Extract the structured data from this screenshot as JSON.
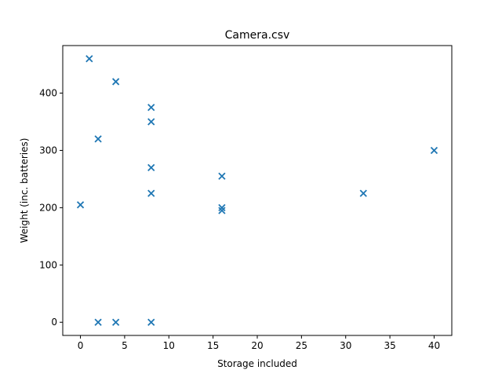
{
  "chart_data": {
    "type": "scatter",
    "title": "Camera.csv",
    "xlabel": "Storage included",
    "ylabel": "Weight (inc. batteries)",
    "xlim": [
      -2,
      42
    ],
    "ylim": [
      -23,
      483
    ],
    "xticks": [
      0,
      5,
      10,
      15,
      20,
      25,
      30,
      35,
      40
    ],
    "yticks": [
      0,
      100,
      200,
      300,
      400
    ],
    "grid": false,
    "marker": "x",
    "marker_color": "#1f77b4",
    "points": [
      {
        "x": 1,
        "y": 460
      },
      {
        "x": 4,
        "y": 420
      },
      {
        "x": 8,
        "y": 375
      },
      {
        "x": 8,
        "y": 350
      },
      {
        "x": 2,
        "y": 320
      },
      {
        "x": 40,
        "y": 300
      },
      {
        "x": 8,
        "y": 270
      },
      {
        "x": 16,
        "y": 255
      },
      {
        "x": 8,
        "y": 225
      },
      {
        "x": 32,
        "y": 225
      },
      {
        "x": 0,
        "y": 205
      },
      {
        "x": 16,
        "y": 200
      },
      {
        "x": 16,
        "y": 195
      },
      {
        "x": 2,
        "y": 0
      },
      {
        "x": 4,
        "y": 0
      },
      {
        "x": 8,
        "y": 0
      }
    ]
  }
}
